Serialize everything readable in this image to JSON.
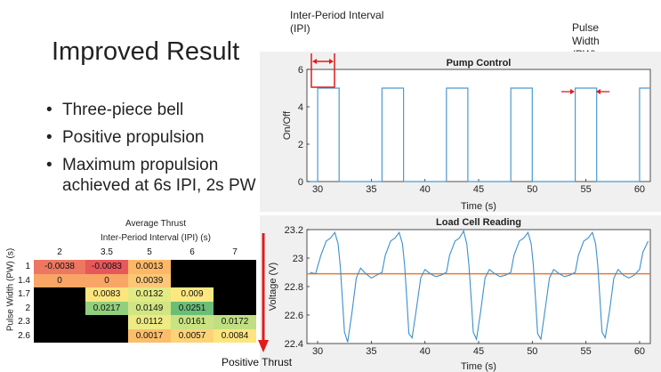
{
  "slide": {
    "title": "Improved Result",
    "bullets": [
      "Three-piece bell",
      "Positive propulsion",
      "Maximum propulsion achieved at 6s IPI, 2s PW"
    ],
    "annotations": {
      "ipi": "Inter-Period Interval (IPI)",
      "pw": "Pulse Width (PW)",
      "positive_thrust": "Positive Thrust"
    }
  },
  "colors": {
    "pump_line": "#4a9bd4",
    "load_line": "#3a8fcf",
    "mean_line": "#e07b39",
    "annotation_red": "#e01b1b"
  },
  "chart_data": [
    {
      "type": "line",
      "title": "Pump Control",
      "xlabel": "Time (s)",
      "ylabel": "On/Off",
      "xlim": [
        29,
        61
      ],
      "ylim": [
        0,
        6
      ],
      "xticks": [
        30,
        35,
        40,
        45,
        50,
        55,
        60
      ],
      "yticks": [
        0,
        2,
        4,
        6
      ],
      "grid": false,
      "series": [
        {
          "x": [
            29.3,
            30,
            30,
            32,
            32,
            36,
            36,
            38,
            38,
            42,
            42,
            44,
            44,
            48,
            48,
            50,
            50,
            54,
            54,
            56,
            56,
            60,
            60,
            61
          ],
          "values": [
            0,
            0,
            5,
            5,
            0,
            0,
            5,
            5,
            0,
            0,
            5,
            5,
            0,
            0,
            5,
            5,
            0,
            0,
            5,
            5,
            0,
            0,
            5,
            5
          ]
        }
      ]
    },
    {
      "type": "line",
      "title": "Load Cell Reading",
      "xlabel": "Time (s)",
      "ylabel": "Voltage (V)",
      "xlim": [
        29,
        61
      ],
      "ylim": [
        22.4,
        23.2
      ],
      "xticks": [
        30,
        35,
        40,
        45,
        50,
        55,
        60
      ],
      "yticks": [
        22.4,
        22.6,
        22.8,
        23,
        23.2
      ],
      "grid": false,
      "reference_line": 22.89,
      "series": [
        {
          "x": [
            29.3,
            29.8,
            30.3,
            30.8,
            31.2,
            31.6,
            31.9,
            32.1,
            32.3,
            32.5,
            32.8,
            33.2,
            33.6,
            34.0,
            34.5,
            35.0,
            35.5,
            36.0,
            36.3,
            36.8,
            37.2,
            37.6,
            37.9,
            38.1,
            38.3,
            38.5,
            38.8,
            39.2,
            39.6,
            40.0,
            40.5,
            41.0,
            41.5,
            42.0,
            42.3,
            42.8,
            43.2,
            43.6,
            43.9,
            44.1,
            44.3,
            44.5,
            44.8,
            45.2,
            45.6,
            46.0,
            46.5,
            47.0,
            47.5,
            48.0,
            48.3,
            48.8,
            49.2,
            49.6,
            49.9,
            50.1,
            50.3,
            50.5,
            50.8,
            51.2,
            51.6,
            52.0,
            52.5,
            53.0,
            53.5,
            54.0,
            54.3,
            54.8,
            55.2,
            55.6,
            55.9,
            56.1,
            56.3,
            56.5,
            56.8,
            57.2,
            57.6,
            58.0,
            58.5,
            59.0,
            59.5,
            60.0,
            60.3,
            60.8
          ],
          "values": [
            22.9,
            22.89,
            23.02,
            23.12,
            23.14,
            23.18,
            23.1,
            22.95,
            22.72,
            22.48,
            22.41,
            22.62,
            22.86,
            22.93,
            22.89,
            22.86,
            22.88,
            22.9,
            23.02,
            23.12,
            23.14,
            23.18,
            23.1,
            22.95,
            22.72,
            22.47,
            22.44,
            22.64,
            22.86,
            22.92,
            22.89,
            22.87,
            22.88,
            22.9,
            23.02,
            23.12,
            23.14,
            23.19,
            23.1,
            22.95,
            22.72,
            22.48,
            22.43,
            22.63,
            22.86,
            22.92,
            22.89,
            22.87,
            22.88,
            22.9,
            23.02,
            23.12,
            23.14,
            23.18,
            23.1,
            22.95,
            22.72,
            22.47,
            22.43,
            22.64,
            22.86,
            22.92,
            22.89,
            22.87,
            22.88,
            22.9,
            23.02,
            23.12,
            23.14,
            23.18,
            23.1,
            22.95,
            22.72,
            22.48,
            22.44,
            22.63,
            22.86,
            22.92,
            22.88,
            22.86,
            22.88,
            22.92,
            23.04,
            23.12
          ]
        }
      ]
    },
    {
      "type": "heatmap",
      "title": "Average Thrust",
      "xlabel": "Inter-Period Interval (IPI) (s)",
      "ylabel": "Pulse Width (PW) (s)",
      "columns": [
        "2",
        "3.5",
        "5",
        "6",
        "7"
      ],
      "rows": [
        "1",
        "1.4",
        "1.7",
        "2",
        "2.3",
        "2.6"
      ],
      "cells": [
        [
          {
            "t": "-0.0038",
            "c": "#ee7761"
          },
          {
            "t": "-0.0083",
            "c": "#e8585a"
          },
          {
            "t": "0.0013",
            "c": "#fcb866"
          },
          {
            "t": "",
            "c": "#000000"
          },
          {
            "t": "",
            "c": "#000000"
          }
        ],
        [
          {
            "t": "0",
            "c": "#f9a566"
          },
          {
            "t": "0",
            "c": "#f9a566"
          },
          {
            "t": "0.0039",
            "c": "#fdc775"
          },
          {
            "t": "",
            "c": "#000000"
          },
          {
            "t": "",
            "c": "#000000"
          }
        ],
        [
          {
            "t": "",
            "c": "#000000"
          },
          {
            "t": "0.0083",
            "c": "#fde57e"
          },
          {
            "t": "0.0132",
            "c": "#e2ea84"
          },
          {
            "t": "0.009",
            "c": "#fde87f"
          },
          {
            "t": "",
            "c": "#000000"
          }
        ],
        [
          {
            "t": "",
            "c": "#000000"
          },
          {
            "t": "0.0217",
            "c": "#92cf7c"
          },
          {
            "t": "0.0149",
            "c": "#d1e584"
          },
          {
            "t": "0.0251",
            "c": "#6bbe78"
          },
          {
            "t": "",
            "c": "#000000"
          }
        ],
        [
          {
            "t": "",
            "c": "#000000"
          },
          {
            "t": "",
            "c": "#000000"
          },
          {
            "t": "0.0112",
            "c": "#eceb84"
          },
          {
            "t": "0.0161",
            "c": "#c9e283"
          },
          {
            "t": "0.0172",
            "c": "#bfdf82"
          }
        ],
        [
          {
            "t": "",
            "c": "#000000"
          },
          {
            "t": "",
            "c": "#000000"
          },
          {
            "t": "0.0017",
            "c": "#fcbd6a"
          },
          {
            "t": "0.0057",
            "c": "#fdd378"
          },
          {
            "t": "0.0084",
            "c": "#fde57e"
          }
        ]
      ]
    }
  ]
}
